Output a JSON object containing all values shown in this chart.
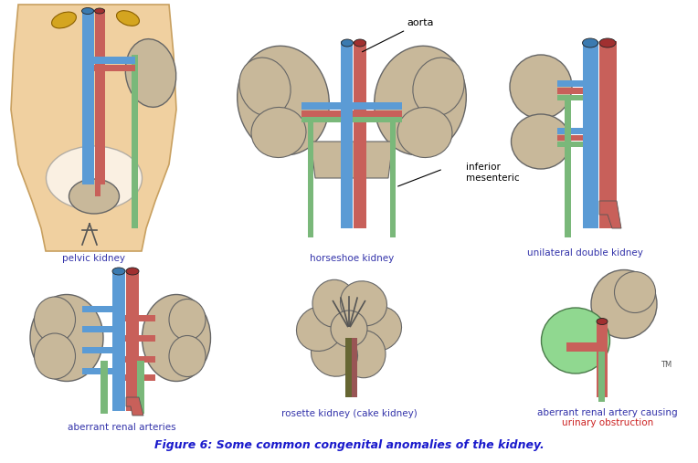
{
  "title": "Figure 6: Some common congenital anomalies of the kidney.",
  "title_color": "#1a1acc",
  "title_fontsize": 9.0,
  "background_color": "#ffffff",
  "labels": {
    "pelvic_kidney": "pelvic kidney",
    "horseshoe_kidney": "horseshoe kidney",
    "unilateral_double": "unilateral double kidney",
    "aberrant_arteries": "aberrant renal arteries",
    "rosette_kidney": "rosette kidney (cake kidney)",
    "aberrant_obstruction_line1": "aberrant renal artery causing",
    "aberrant_obstruction_line2": "urinary obstruction",
    "aorta": "aorta",
    "inferior_mesenteric_line1": "inferior",
    "inferior_mesenteric_line2": "mesenteric"
  },
  "label_color": "#3333aa",
  "label_fontsize": 7.5,
  "colors": {
    "aorta": "#c8605a",
    "vena_cava": "#5b9bd5",
    "ureter": "#7ab87a",
    "kidney": "#c8b89a",
    "adrenal": "#d4a520",
    "skin": "#f0d0a0",
    "skin_edge": "#c8a060",
    "green_kidney": "#90d890",
    "vessel_dark": "#222222"
  }
}
